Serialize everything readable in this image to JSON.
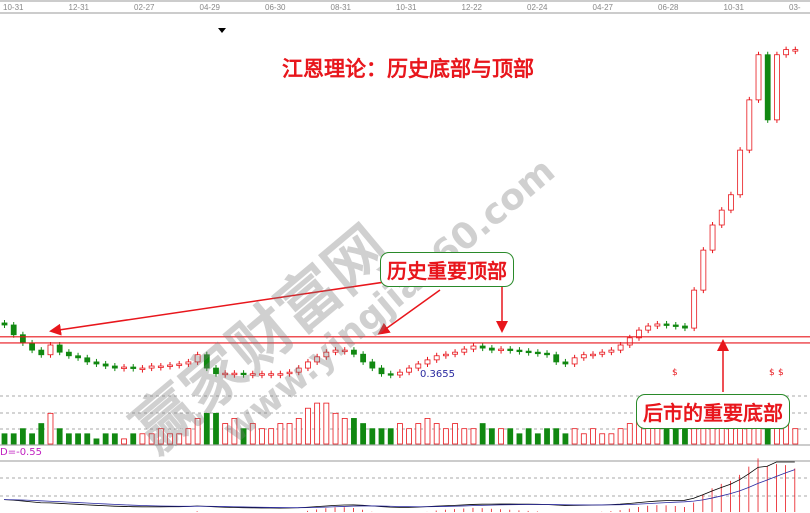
{
  "title": "江恩理论：历史底部与顶部",
  "callouts": {
    "top": "历史重要顶部",
    "bottom": "后市的重要底部"
  },
  "watermark": {
    "name": "赢家财富网",
    "url": "www.yingjia360.com"
  },
  "indicator_label": "D=-0.55",
  "low_label": "0.3655",
  "dollar_mark": "$",
  "colors": {
    "up": "#e8161c",
    "down": "#118811",
    "line": "#e8161c",
    "callout_border": "#2a8a2a"
  },
  "chart_data": {
    "type": "candlestick",
    "x_tick_labels": [
      "10-31",
      "12-31",
      "02-27",
      "04-29",
      "06-30",
      "08-31",
      "10-31",
      "12-22",
      "02-24",
      "04-27",
      "06-28",
      "10-31",
      "03-"
    ],
    "closes": [
      0.463,
      0.444,
      0.428,
      0.414,
      0.405,
      0.424,
      0.41,
      0.403,
      0.399,
      0.391,
      0.387,
      0.383,
      0.379,
      0.381,
      0.379,
      0.379,
      0.383,
      0.383,
      0.385,
      0.387,
      0.391,
      0.405,
      0.379,
      0.368,
      0.369,
      0.369,
      0.368,
      0.368,
      0.368,
      0.368,
      0.368,
      0.371,
      0.379,
      0.391,
      0.401,
      0.41,
      0.414,
      0.414,
      0.406,
      0.391,
      0.379,
      0.368,
      0.3655,
      0.371,
      0.379,
      0.387,
      0.395,
      0.403,
      0.406,
      0.41,
      0.416,
      0.422,
      0.418,
      0.414,
      0.416,
      0.414,
      0.412,
      0.41,
      0.408,
      0.405,
      0.391,
      0.387,
      0.399,
      0.405,
      0.406,
      0.41,
      0.414,
      0.424,
      0.438,
      0.453,
      0.461,
      0.465,
      0.463,
      0.461,
      0.457,
      0.531,
      0.609,
      0.658,
      0.687,
      0.717,
      0.804,
      0.902,
      0.99,
      0.863,
      0.99,
      1.0,
      1.0
    ],
    "volumes": [
      2,
      2,
      3,
      2,
      4,
      6,
      3,
      2,
      2,
      2,
      1,
      2,
      2,
      1,
      2,
      2,
      2,
      3,
      2,
      2,
      3,
      5,
      6,
      6,
      4,
      5,
      3,
      4,
      3,
      3,
      4,
      4,
      5,
      7,
      8,
      8,
      6,
      5,
      5,
      4,
      3,
      3,
      3,
      4,
      3,
      4,
      5,
      4,
      3,
      4,
      3,
      3,
      4,
      3,
      3,
      3,
      2,
      3,
      2,
      3,
      3,
      2,
      3,
      2,
      3,
      2,
      2,
      3,
      4,
      6,
      9,
      9,
      8,
      5,
      4,
      3,
      3,
      4,
      8,
      9,
      9,
      7,
      8,
      9,
      9,
      8,
      3
    ],
    "resistance_lines": [
      0.44,
      0.428
    ],
    "low_annotation": 0.3655
  }
}
